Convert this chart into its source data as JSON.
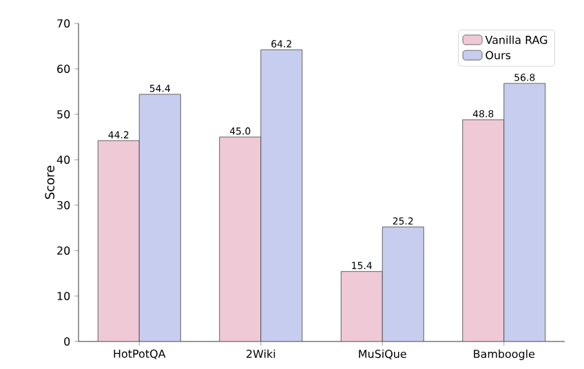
{
  "chart_data": {
    "type": "bar",
    "ylabel": "Score",
    "categories": [
      "HotPotQA",
      "2Wiki",
      "MuSiQue",
      "Bamboogle"
    ],
    "series": [
      {
        "name": "Vanilla RAG",
        "color": "#efc9d6",
        "values": [
          44.2,
          45.0,
          15.4,
          48.8
        ],
        "value_labels": [
          "44.2",
          "45.0",
          "15.4",
          "48.8"
        ]
      },
      {
        "name": "Ours",
        "color": "#c6cdee",
        "values": [
          54.4,
          64.2,
          25.2,
          56.8
        ],
        "value_labels": [
          "54.4",
          "64.2",
          "25.2",
          "56.8"
        ]
      }
    ],
    "ylim": [
      0,
      70
    ],
    "yticks": [
      0,
      10,
      20,
      30,
      40,
      50,
      60,
      70
    ],
    "legend": "top right",
    "grid": false
  }
}
